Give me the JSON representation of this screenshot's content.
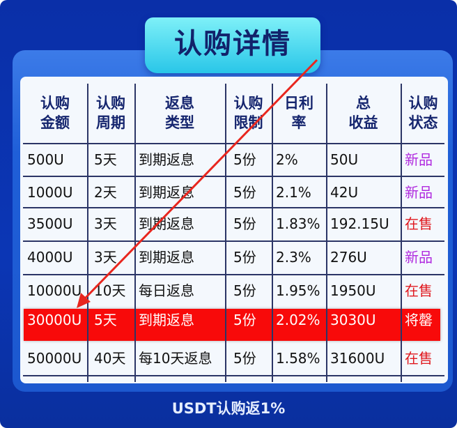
{
  "title": "认购详情",
  "headers": [
    "认购\n金额",
    "认购\n周期",
    "返息\n类型",
    "认购\n限制",
    "日利\n率",
    "总\n收益",
    "认购\n状态"
  ],
  "rows": [
    {
      "amount": "500U",
      "period": "5天",
      "type": "到期返息",
      "limit": "5份",
      "rate": "2%",
      "total": "50U",
      "status": "新品",
      "highlighted": false
    },
    {
      "amount": "1000U",
      "period": "2天",
      "type": "到期返息",
      "limit": "5份",
      "rate": "2.1%",
      "total": "42U",
      "status": "新品",
      "highlighted": false
    },
    {
      "amount": "3500U",
      "period": "3天",
      "type": "到期返息",
      "limit": "5份",
      "rate": "1.83%",
      "total": "192.15U",
      "status": "在售",
      "highlighted": false
    },
    {
      "amount": "4000U",
      "period": "3天",
      "type": "到期返息",
      "limit": "5份",
      "rate": "2.3%",
      "total": "276U",
      "status": "新品",
      "highlighted": false
    },
    {
      "amount": "10000U",
      "period": "10天",
      "type": "每日返息",
      "limit": "5份",
      "rate": "1.95%",
      "total": "1950U",
      "status": "在售",
      "highlighted": false
    },
    {
      "amount": "30000U",
      "period": "5天",
      "type": "到期返息",
      "limit": "5份",
      "rate": "2.02%",
      "total": "3030U",
      "status": "将罄",
      "highlighted": true
    },
    {
      "amount": "50000U",
      "period": "40天",
      "type": "每10天返息",
      "limit": "5份",
      "rate": "1.58%",
      "total": "31600U",
      "status": "在售",
      "highlighted": false
    }
  ],
  "status_colors": {
    "新品": "#b02adf",
    "在售": "#e0181e",
    "将罄": "#ffffff"
  },
  "highlight_color": "#f80a0a",
  "annotation": "red-arrow pointing to 30000U row",
  "footer": "USDT认购返1%"
}
